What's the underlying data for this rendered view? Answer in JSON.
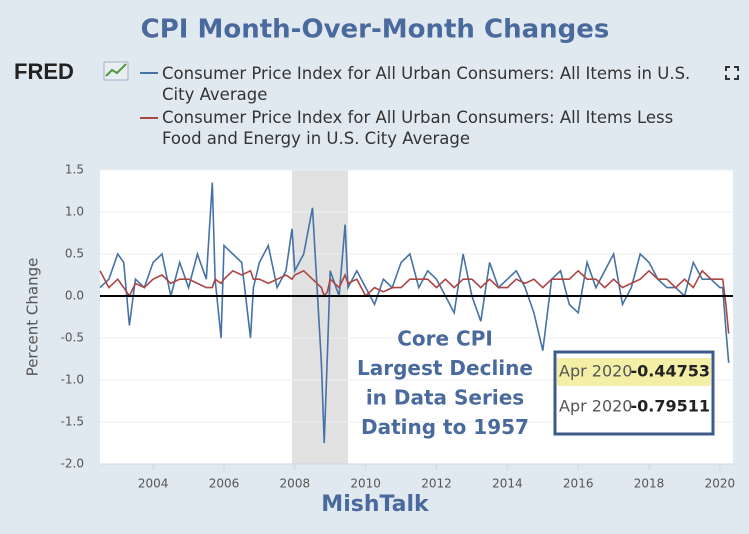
{
  "chart_data": {
    "type": "line",
    "title": "CPI Month-Over-Month Changes",
    "logo": "FRED",
    "ylabel": "Percent Change",
    "footer": "MishTalk",
    "annotation": [
      "Core CPI",
      "Largest Decline",
      "in Data Series",
      "Dating to 1957"
    ],
    "tooltip_date": "Apr 2020",
    "x": [
      2002.5,
      2002.75,
      2003.0,
      2003.17,
      2003.33,
      2003.5,
      2003.75,
      2004.0,
      2004.25,
      2004.5,
      2004.75,
      2005.0,
      2005.25,
      2005.5,
      2005.67,
      2005.75,
      2005.92,
      2006.0,
      2006.25,
      2006.5,
      2006.75,
      2006.83,
      2007.0,
      2007.25,
      2007.5,
      2007.75,
      2007.92,
      2008.0,
      2008.25,
      2008.5,
      2008.75,
      2008.83,
      2008.92,
      2009.0,
      2009.25,
      2009.42,
      2009.5,
      2009.75,
      2010.0,
      2010.25,
      2010.5,
      2010.75,
      2011.0,
      2011.25,
      2011.5,
      2011.75,
      2012.0,
      2012.25,
      2012.5,
      2012.75,
      2013.0,
      2013.25,
      2013.5,
      2013.75,
      2014.0,
      2014.25,
      2014.5,
      2014.75,
      2015.0,
      2015.25,
      2015.5,
      2015.75,
      2016.0,
      2016.25,
      2016.5,
      2016.75,
      2017.0,
      2017.25,
      2017.5,
      2017.75,
      2018.0,
      2018.25,
      2018.5,
      2018.75,
      2019.0,
      2019.25,
      2019.5,
      2019.75,
      2020.0,
      2020.08,
      2020.17,
      2020.25
    ],
    "series": [
      {
        "name": "Consumer Price Index for All Urban Consumers: All Items in U.S. City Average",
        "color": "#4572a7",
        "values": [
          0.1,
          0.2,
          0.5,
          0.4,
          -0.35,
          0.2,
          0.1,
          0.4,
          0.5,
          0.0,
          0.4,
          0.1,
          0.5,
          0.2,
          1.35,
          0.2,
          -0.5,
          0.6,
          0.5,
          0.4,
          -0.5,
          0.1,
          0.4,
          0.6,
          0.1,
          0.3,
          0.8,
          0.3,
          0.5,
          1.05,
          -0.8,
          -1.75,
          -0.7,
          0.3,
          0.0,
          0.85,
          0.1,
          0.3,
          0.1,
          -0.1,
          0.2,
          0.1,
          0.4,
          0.5,
          0.1,
          0.3,
          0.2,
          0.0,
          -0.2,
          0.5,
          0.0,
          -0.3,
          0.4,
          0.1,
          0.2,
          0.3,
          0.1,
          -0.2,
          -0.65,
          0.2,
          0.3,
          -0.1,
          -0.2,
          0.4,
          0.1,
          0.3,
          0.5,
          -0.1,
          0.1,
          0.5,
          0.4,
          0.2,
          0.1,
          0.1,
          0.0,
          0.4,
          0.2,
          0.2,
          0.1,
          0.1,
          -0.4,
          -0.79511
        ]
      },
      {
        "name": "Consumer Price Index for All Urban Consumers: All Items Less Food and Energy in U.S. City Average",
        "color": "#aa4643",
        "values": [
          0.3,
          0.1,
          0.2,
          0.1,
          0.0,
          0.15,
          0.1,
          0.2,
          0.25,
          0.15,
          0.2,
          0.2,
          0.15,
          0.1,
          0.1,
          0.2,
          0.15,
          0.2,
          0.3,
          0.25,
          0.3,
          0.2,
          0.2,
          0.15,
          0.2,
          0.25,
          0.2,
          0.25,
          0.3,
          0.2,
          0.1,
          0.0,
          0.05,
          0.2,
          0.1,
          0.25,
          0.15,
          0.2,
          0.0,
          0.1,
          0.05,
          0.1,
          0.1,
          0.2,
          0.2,
          0.2,
          0.1,
          0.2,
          0.1,
          0.2,
          0.2,
          0.1,
          0.2,
          0.1,
          0.1,
          0.2,
          0.15,
          0.2,
          0.1,
          0.2,
          0.2,
          0.2,
          0.3,
          0.2,
          0.2,
          0.1,
          0.2,
          0.1,
          0.15,
          0.2,
          0.3,
          0.2,
          0.2,
          0.1,
          0.2,
          0.1,
          0.3,
          0.2,
          0.2,
          0.2,
          -0.1,
          -0.44753
        ]
      }
    ],
    "recession_shading": [
      2007.92,
      2009.5
    ],
    "xlim": [
      2002.5,
      2020.37
    ],
    "xticks": [
      2004,
      2006,
      2008,
      2010,
      2012,
      2014,
      2016,
      2018,
      2020
    ],
    "ylim": [
      -2,
      1.5
    ],
    "yticks": [
      {
        "value": -2,
        "label": "-2.0"
      },
      {
        "value": -1.5,
        "label": "-1.5"
      },
      {
        "value": -1,
        "label": "-1.0"
      },
      {
        "value": -0.5,
        "label": "-0.5"
      },
      {
        "value": 0,
        "label": "0.0"
      },
      {
        "value": 0.5,
        "label": "0.5"
      },
      {
        "value": 1,
        "label": "1.0"
      },
      {
        "value": 1.5,
        "label": "1.5"
      }
    ],
    "zero_line": true
  }
}
